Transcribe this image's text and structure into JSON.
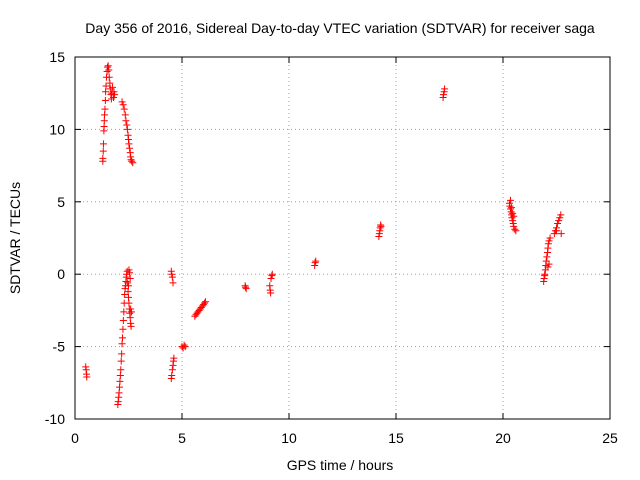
{
  "chart_data": {
    "type": "scatter",
    "title": "Day 356 of 2016, Sidereal Day-to-day VTEC variation (SDTVAR) for receiver saga",
    "xlabel": "GPS time / hours",
    "ylabel": "SDTVAR / TECUs",
    "xlim": [
      0,
      25
    ],
    "ylim": [
      -10,
      15
    ],
    "xticks": [
      0,
      5,
      10,
      15,
      20,
      25
    ],
    "yticks": [
      -10,
      -5,
      0,
      5,
      10,
      15
    ],
    "grid": true,
    "marker": "+",
    "color": "#ff0000",
    "series": [
      {
        "name": "SDTVAR",
        "points": [
          [
            0.5,
            -6.4
          ],
          [
            0.52,
            -6.6
          ],
          [
            0.54,
            -6.9
          ],
          [
            0.55,
            -7.1
          ],
          [
            1.3,
            7.8
          ],
          [
            1.3,
            8.0
          ],
          [
            1.32,
            8.5
          ],
          [
            1.33,
            9.0
          ],
          [
            1.35,
            9.9
          ],
          [
            1.36,
            10.2
          ],
          [
            1.37,
            10.6
          ],
          [
            1.38,
            11.0
          ],
          [
            1.4,
            11.4
          ],
          [
            1.42,
            12.0
          ],
          [
            1.43,
            12.6
          ],
          [
            1.45,
            13.0
          ],
          [
            1.47,
            13.6
          ],
          [
            1.5,
            14.0
          ],
          [
            1.52,
            14.3
          ],
          [
            1.55,
            14.4
          ],
          [
            1.58,
            14.1
          ],
          [
            1.6,
            13.6
          ],
          [
            1.63,
            13.2
          ],
          [
            1.65,
            12.8
          ],
          [
            1.68,
            12.4
          ],
          [
            1.7,
            12.1
          ],
          [
            1.72,
            12.5
          ],
          [
            1.75,
            12.9
          ],
          [
            1.8,
            12.2
          ],
          [
            1.82,
            12.6
          ],
          [
            1.85,
            12.4
          ],
          [
            2.0,
            -9.0
          ],
          [
            2.02,
            -8.8
          ],
          [
            2.04,
            -8.5
          ],
          [
            2.06,
            -8.2
          ],
          [
            2.08,
            -7.8
          ],
          [
            2.1,
            -7.4
          ],
          [
            2.12,
            -7.0
          ],
          [
            2.14,
            -6.6
          ],
          [
            2.16,
            -6.0
          ],
          [
            2.18,
            -5.5
          ],
          [
            2.2,
            -4.8
          ],
          [
            2.22,
            -4.4
          ],
          [
            2.24,
            -3.8
          ],
          [
            2.26,
            -3.2
          ],
          [
            2.28,
            -2.6
          ],
          [
            2.3,
            -2.0
          ],
          [
            2.32,
            -1.4
          ],
          [
            2.34,
            -1.0
          ],
          [
            2.36,
            -0.8
          ],
          [
            2.38,
            -0.5
          ],
          [
            2.4,
            -0.2
          ],
          [
            2.42,
            0.0
          ],
          [
            2.44,
            0.2
          ],
          [
            2.46,
            -0.6
          ],
          [
            2.48,
            -1.2
          ],
          [
            2.5,
            -1.6
          ],
          [
            2.52,
            -2.0
          ],
          [
            2.54,
            -2.4
          ],
          [
            2.56,
            -2.7
          ],
          [
            2.58,
            -3.0
          ],
          [
            2.6,
            -3.4
          ],
          [
            2.62,
            -3.6
          ],
          [
            2.52,
            0.3
          ],
          [
            2.55,
            0.1
          ],
          [
            2.58,
            -0.3
          ],
          [
            2.5,
            -0.8
          ],
          [
            2.6,
            -2.4
          ],
          [
            2.64,
            -2.6
          ],
          [
            2.2,
            11.9
          ],
          [
            2.25,
            11.7
          ],
          [
            2.3,
            11.4
          ],
          [
            2.35,
            11.0
          ],
          [
            2.38,
            10.6
          ],
          [
            2.42,
            10.3
          ],
          [
            2.45,
            10.0
          ],
          [
            2.48,
            9.6
          ],
          [
            2.5,
            9.3
          ],
          [
            2.52,
            9.0
          ],
          [
            2.55,
            8.7
          ],
          [
            2.58,
            8.4
          ],
          [
            2.6,
            8.1
          ],
          [
            2.62,
            7.9
          ],
          [
            2.65,
            7.8
          ],
          [
            2.7,
            7.7
          ],
          [
            4.5,
            0.2
          ],
          [
            4.52,
            0.0
          ],
          [
            4.55,
            -0.2
          ],
          [
            4.58,
            -0.6
          ],
          [
            4.5,
            -7.2
          ],
          [
            4.52,
            -7.0
          ],
          [
            4.55,
            -6.6
          ],
          [
            4.58,
            -6.3
          ],
          [
            4.6,
            -6.0
          ],
          [
            4.62,
            -5.8
          ],
          [
            5.0,
            -5.0
          ],
          [
            5.05,
            -5.1
          ],
          [
            5.1,
            -4.9
          ],
          [
            5.15,
            -5.0
          ],
          [
            5.6,
            -2.9
          ],
          [
            5.65,
            -2.8
          ],
          [
            5.7,
            -2.7
          ],
          [
            5.75,
            -2.6
          ],
          [
            5.8,
            -2.5
          ],
          [
            5.85,
            -2.4
          ],
          [
            5.9,
            -2.3
          ],
          [
            5.95,
            -2.2
          ],
          [
            6.0,
            -2.1
          ],
          [
            6.05,
            -2.0
          ],
          [
            6.1,
            -1.9
          ],
          [
            7.95,
            -0.8
          ],
          [
            7.97,
            -0.9
          ],
          [
            8.0,
            -1.0
          ],
          [
            9.1,
            -0.8
          ],
          [
            9.12,
            -1.1
          ],
          [
            9.14,
            -1.3
          ],
          [
            9.16,
            -0.3
          ],
          [
            9.2,
            -0.1
          ],
          [
            9.22,
            0.0
          ],
          [
            11.2,
            0.6
          ],
          [
            11.22,
            0.8
          ],
          [
            11.25,
            0.9
          ],
          [
            14.2,
            2.6
          ],
          [
            14.22,
            2.8
          ],
          [
            14.24,
            3.0
          ],
          [
            14.26,
            3.2
          ],
          [
            14.28,
            3.4
          ],
          [
            14.3,
            3.3
          ],
          [
            17.2,
            12.2
          ],
          [
            17.22,
            12.4
          ],
          [
            17.25,
            12.6
          ],
          [
            17.27,
            12.8
          ],
          [
            20.3,
            4.9
          ],
          [
            20.32,
            4.7
          ],
          [
            20.35,
            4.5
          ],
          [
            20.38,
            4.3
          ],
          [
            20.4,
            4.1
          ],
          [
            20.42,
            3.9
          ],
          [
            20.45,
            3.7
          ],
          [
            20.48,
            3.5
          ],
          [
            20.5,
            3.3
          ],
          [
            20.55,
            3.1
          ],
          [
            20.6,
            3.0
          ],
          [
            20.35,
            5.1
          ],
          [
            20.4,
            4.6
          ],
          [
            20.45,
            4.2
          ],
          [
            20.5,
            4.0
          ],
          [
            21.9,
            -0.5
          ],
          [
            21.92,
            -0.3
          ],
          [
            21.95,
            0.0
          ],
          [
            21.98,
            0.3
          ],
          [
            22.0,
            0.6
          ],
          [
            22.02,
            0.9
          ],
          [
            22.05,
            1.2
          ],
          [
            22.08,
            1.5
          ],
          [
            22.1,
            1.8
          ],
          [
            22.12,
            2.1
          ],
          [
            22.15,
            2.3
          ],
          [
            22.2,
            2.5
          ],
          [
            21.95,
            -0.1
          ],
          [
            22.1,
            0.5
          ],
          [
            22.15,
            0.7
          ],
          [
            22.4,
            2.8
          ],
          [
            22.45,
            3.0
          ],
          [
            22.5,
            3.2
          ],
          [
            22.55,
            3.5
          ],
          [
            22.6,
            3.7
          ],
          [
            22.65,
            3.9
          ],
          [
            22.7,
            4.1
          ],
          [
            22.72,
            2.8
          ],
          [
            22.5,
            3.0
          ]
        ]
      }
    ]
  }
}
